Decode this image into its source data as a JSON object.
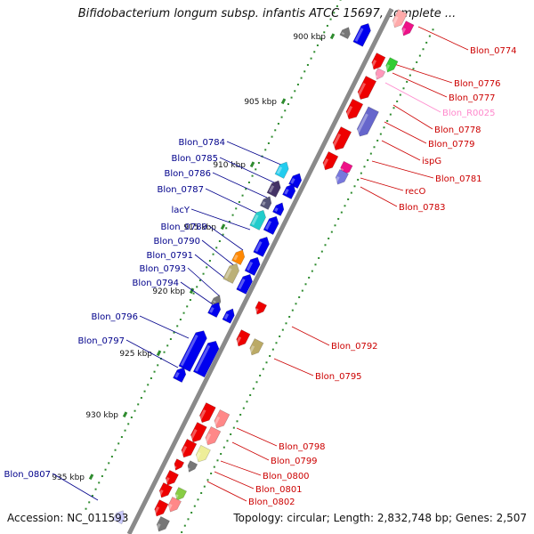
{
  "header": {
    "title": "Bifidobacterium longum subsp. infantis ATCC 15697, complete ..."
  },
  "footer": {
    "accession": "Accession: NC_011593",
    "stats": "Topology: circular; Length: 2,832,748 bp; Genes: 2,507"
  },
  "colors": {
    "backbone": "#8a8a8a",
    "tick_dot": "#2e8b2e",
    "left_label": "#00008b",
    "right_label": "#cc0000",
    "rna_label": "#ff88cc",
    "gene_blue": "#0000ee",
    "gene_red": "#ee0000"
  },
  "map": {
    "tick_labels": [
      "900 kbp",
      "905 kbp",
      "910 kbp",
      "915 kbp",
      "920 kbp",
      "925 kbp",
      "930 kbp",
      "935 kbp"
    ],
    "left_genes": [
      "Blon_0784",
      "Blon_0785",
      "Blon_0786",
      "Blon_0787",
      "lacY",
      "Blon_0789",
      "Blon_0790",
      "Blon_0791",
      "Blon_0793",
      "Blon_0794",
      "Blon_0796",
      "Blon_0797",
      "Blon_0807"
    ],
    "right_genes": [
      "Blon_0774",
      "Blon_0776",
      "Blon_0777",
      "Blon_R0025",
      "Blon_0778",
      "Blon_0779",
      "ispG",
      "Blon_0781",
      "recO",
      "Blon_0783",
      "Blon_0792",
      "Blon_0795",
      "Blon_0798",
      "Blon_0799",
      "Blon_0800",
      "Blon_0801",
      "Blon_0802"
    ],
    "rna_gene": "Blon_R0025"
  }
}
